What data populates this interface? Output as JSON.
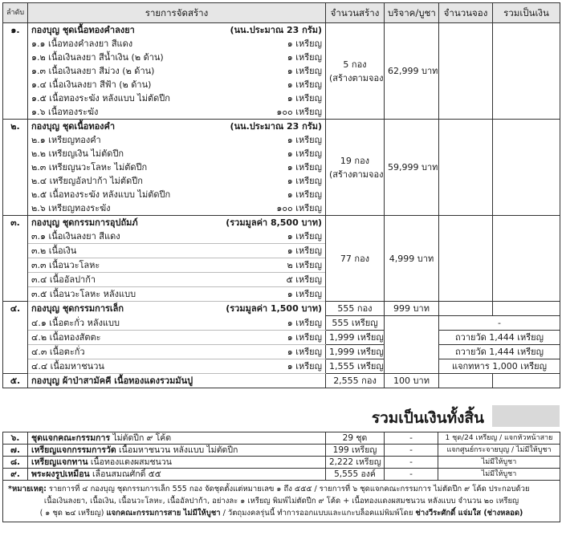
{
  "header": {
    "no": "ลำดับ",
    "item": "รายการจัดสร้าง",
    "qty": "จำนวนสร้าง",
    "price": "บริจาค/บูชา",
    "reserve": "จำนวนจอง",
    "total": "รวมเป็นเงิน"
  },
  "groups": [
    {
      "no": "๑.",
      "title": "กองบุญ ชุดเนื้อทองคำลงยา",
      "title_note": "(นน.ประมาณ 23 กรัม)",
      "qty": "5 กอง",
      "qty_note": "(สร้างตามจอง)",
      "price": "62,999 บาท",
      "items": [
        {
          "label": "๑.๑ เนื้อทองคำลงยา สีแดง",
          "count": "๑ เหรียญ"
        },
        {
          "label": "๑.๒ เนื้อเงินลงยา สีน้ำเงิน (๒ ด้าน)",
          "count": "๑ เหรียญ"
        },
        {
          "label": "๑.๓ เนื้อเงินลงยา สีม่วง (๒ ด้าน)",
          "count": "๑ เหรียญ"
        },
        {
          "label": "๑.๔ เนื้อเงินลงยา สีฟ้า (๒ ด้าน)",
          "count": "๑ เหรียญ"
        },
        {
          "label": "๑.๕ เนื้อทองระฆัง หลังแบบ ไม่ตัดปีก",
          "count": "๑ เหรียญ"
        },
        {
          "label": "๑.๖ เนื้อทองระฆัง",
          "count": "๑๐๐ เหรียญ"
        }
      ]
    },
    {
      "no": "๒.",
      "title": "กองบุญ ชุดเนื้อทองคำ",
      "title_note": "(นน.ประมาณ 23 กรัม)",
      "qty": "19 กอง",
      "qty_note": "(สร้างตามจอง)",
      "price": "59,999 บาท",
      "items": [
        {
          "label": "๒.๑ เหรียญทองคำ",
          "count": "๑ เหรียญ"
        },
        {
          "label": "๒.๒ เหรียญเงิน ไม่ตัดปีก",
          "count": "๑ เหรียญ"
        },
        {
          "label": "๒.๓ เหรียญนวะโลหะ ไม่ตัดปีก",
          "count": "๑ เหรียญ"
        },
        {
          "label": "๒.๔ เหรียญอัลปาก้า ไม่ตัดปีก",
          "count": "๑ เหรียญ"
        },
        {
          "label": "๒.๕ เนื้อทองระฆัง หลังแบบ ไม่ตัดปีก",
          "count": "๑ เหรียญ"
        },
        {
          "label": "๒.๖ เหรียญทองระฆัง",
          "count": "๑๐๐ เหรียญ"
        }
      ]
    },
    {
      "no": "๓.",
      "title": "กองบุญ ชุดกรรมการอุปถัมภ์",
      "title_note": "(รวมมูลค่า 8,500 บาท)",
      "qty": "77 กอง",
      "price": "4,999 บาท",
      "items": [
        {
          "label": "๓.๑ เนื้อเงินลงยา สีแดง",
          "count": "๑ เหรียญ"
        },
        {
          "label": "๓.๒ เนื้อเงิน",
          "count": "๑ เหรียญ"
        },
        {
          "label": "๓.๓ เนื้อนวะโลหะ",
          "count": "๒ เหรียญ"
        },
        {
          "label": "๓.๔ เนื้ออัลปาก้า",
          "count": "๕ เหรียญ"
        },
        {
          "label": "๓.๕ เนื้อนวะโลหะ หลังแบบ",
          "count": "๑ เหรียญ"
        }
      ]
    },
    {
      "no": "๔.",
      "title": "กองบุญ ชุดกรรมการเล็ก",
      "title_note": "(รวมมูลค่า 1,500 บาท)",
      "qty": "555 กอง",
      "price": "999 บาท",
      "items": [
        {
          "label": "๔.๑ เนื้อตะกั่ว หลังแบบ",
          "count": "๑ เหรียญ",
          "qty": "555 เหรียญ",
          "note": "-"
        },
        {
          "label": "๔.๒ เนื้อทองสัตตะ",
          "count": "๑ เหรียญ",
          "qty": "1,999 เหรียญ",
          "note": "ถวายวัด 1,444 เหรียญ"
        },
        {
          "label": "๔.๓ เนื้อตะกั่ว",
          "count": "๑ เหรียญ",
          "qty": "1,999 เหรียญ",
          "note": "ถวายวัด 1,444 เหรียญ"
        },
        {
          "label": "๔.๔ เนื้อมหาชนวน",
          "count": "๑ เหรียญ",
          "qty": "1,555 เหรียญ",
          "note": "แจกทหาร 1,000 เหรียญ"
        }
      ]
    },
    {
      "no": "๕.",
      "title": "กองบุญ ผ้าป่าสามัคคี เนื้อทองแดงรวมมันปู",
      "qty": "2,555 กอง",
      "price": "100 บาท",
      "items": []
    }
  ],
  "grand_total": {
    "label": "รวมเป็นเงินทั้งสิ้น"
  },
  "extras": [
    {
      "no": "๖.",
      "title": "ชุดแจกคณะกรรมการ",
      "title_rest": "ไม่ตัดปีก ๙ โค้ด",
      "qty": "29 ชุด",
      "price": "-",
      "note": "1 ชุด/24 เหรียญ / แจกหัวหน้าสาย"
    },
    {
      "no": "๗.",
      "title": "เหรียญแจกกรรมการวัด",
      "title_rest": "เนื้อมหาชนวน หลังแบบ ไม่ตัดปีก",
      "qty": "199 เหรียญ",
      "price": "-",
      "note": "แจกศูนย์กระจายบุญ / ไม่มีให้บูชา"
    },
    {
      "no": "๘.",
      "title": "เหรียญแจกทาน",
      "title_rest": "เนื้อทองแดงผสมชนวน",
      "qty": "2,222 เหรียญ",
      "price": "-",
      "note": "ไม่มีให้บูชา"
    },
    {
      "no": "๙.",
      "title": "พระผงรูปเหมือน",
      "title_rest": "เลื่อนสมณศักดิ์ ๕๕",
      "qty": "5,555 องค์",
      "price": "-",
      "note": "ไม่มีให้บูชา"
    }
  ],
  "footnote": [
    [
      {
        "text": "*หมายเหตุ:",
        "bold": true
      },
      {
        "text": " รายการที่ ๔ กองบุญ ชุดกรรมการเล็ก 555 กอง จัดชุดตั้งแต่หมายเลข ๑ ถึง ๕๕๕ / รายการที่ ๖ ชุดแจกคณะกรรมการ ไม่ตัดปีก ๙ โค้ด ประกอบด้วย",
        "bold": false
      }
    ],
    [
      {
        "text": "เนื้อเงินลงยา, เนื้อเงิน, เนื้อนวะโลหะ, เนื้ออัลปาก้า, อย่างละ ๑ เหรียญ พิมพ์ไม่ตัดปีก ๙ โค้ด + เนื้อทองแดงผสมชนวน หลังแบบ จำนวน ๒๐ เหรียญ",
        "bold": false
      }
    ],
    [
      {
        "text": "( ๑ ชุด ๒๔ เหรียญ) ",
        "bold": false
      },
      {
        "text": "แจกคณะกรรมการสาย ไม่มีให้บูชา",
        "bold": true
      },
      {
        "text": " / วัตถุมงคลรุ่นนี้ ทำการออกแบบและแกะบล็อคแม่พิมพ์โดย ",
        "bold": false
      },
      {
        "text": "ช่างวีระศักดิ์ แจ่มใส (ช่างหลอด)",
        "bold": true
      }
    ]
  ]
}
